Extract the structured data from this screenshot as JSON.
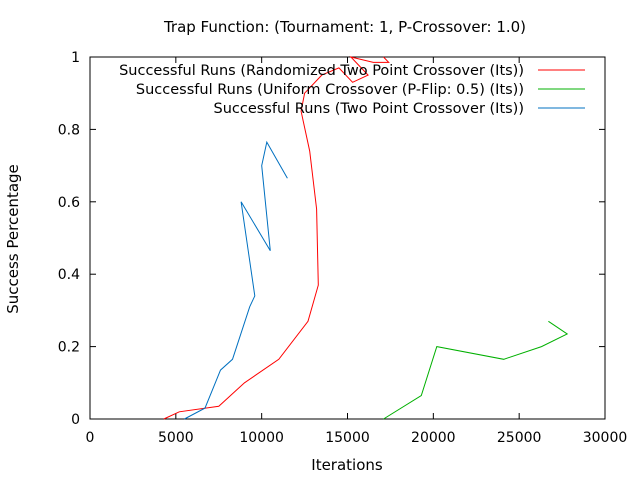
{
  "chart_data": {
    "type": "line",
    "title": "Trap Function:  (Tournament: 1, P-Crossover: 1.0)",
    "xlabel": "Iterations",
    "ylabel": "Success Percentage",
    "xlim": [
      0,
      30000
    ],
    "ylim": [
      0,
      1
    ],
    "xticks": [
      0,
      5000,
      10000,
      15000,
      20000,
      25000,
      30000
    ],
    "yticks": [
      0,
      0.2,
      0.4,
      0.6,
      0.8,
      1
    ],
    "xtick_labels": [
      "0",
      "5000",
      "10000",
      "15000",
      "20000",
      "25000",
      "30000"
    ],
    "ytick_labels": [
      "0",
      "0.2",
      "0.4",
      "0.6",
      "0.8",
      "1"
    ],
    "grid": false,
    "legend_position": "top-right",
    "series": [
      {
        "name": "Successful Runs (Randomized Two Point Crossover (Its))",
        "color": "#ff0000",
        "points": [
          [
            4300,
            0.0
          ],
          [
            5200,
            0.02
          ],
          [
            7500,
            0.035
          ],
          [
            9000,
            0.1
          ],
          [
            11000,
            0.165
          ],
          [
            12700,
            0.27
          ],
          [
            13300,
            0.37
          ],
          [
            13200,
            0.58
          ],
          [
            12800,
            0.74
          ],
          [
            12300,
            0.85
          ],
          [
            12500,
            0.9
          ],
          [
            13500,
            0.95
          ],
          [
            14500,
            0.97
          ],
          [
            15300,
            0.93
          ],
          [
            16200,
            0.95
          ],
          [
            15200,
            1.0
          ],
          [
            16500,
            0.985
          ],
          [
            17400,
            0.985
          ],
          [
            17100,
            1.0
          ]
        ]
      },
      {
        "name": "Successful Runs (Uniform Crossover (P-Flip: 0.5) (Its))",
        "color": "#00b000",
        "points": [
          [
            17100,
            0.0
          ],
          [
            19300,
            0.065
          ],
          [
            20200,
            0.2
          ],
          [
            24100,
            0.165
          ],
          [
            26300,
            0.2
          ],
          [
            27800,
            0.235
          ],
          [
            26700,
            0.27
          ]
        ]
      },
      {
        "name": "Successful Runs (Two Point Crossover (Its))",
        "color": "#0070c0",
        "points": [
          [
            5500,
            0.0
          ],
          [
            6700,
            0.03
          ],
          [
            7600,
            0.135
          ],
          [
            8300,
            0.165
          ],
          [
            9300,
            0.31
          ],
          [
            9600,
            0.34
          ],
          [
            8800,
            0.6
          ],
          [
            10500,
            0.465
          ],
          [
            10000,
            0.7
          ],
          [
            10300,
            0.765
          ],
          [
            11500,
            0.665
          ]
        ]
      }
    ]
  }
}
